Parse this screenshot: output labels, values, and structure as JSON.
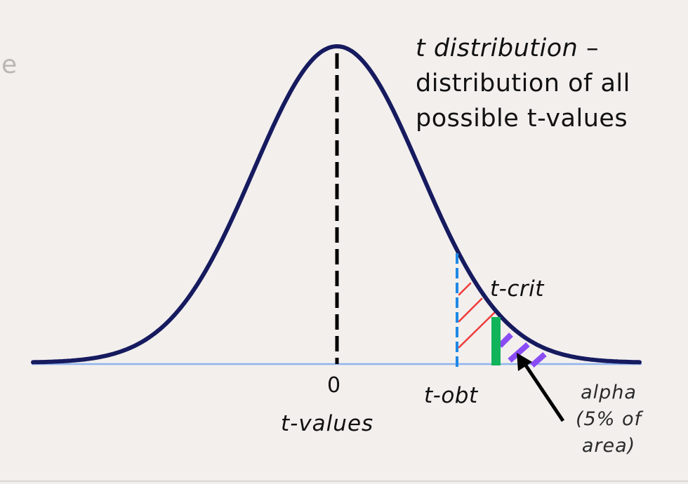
{
  "slide": {
    "edge_letter": "e"
  },
  "title": {
    "term": "t distribution",
    "dash": " –",
    "line2": "distribution of all",
    "line3": "possible t-values"
  },
  "axis": {
    "zero_label": "0",
    "label": "t-values"
  },
  "markers": {
    "t_crit": {
      "label": "t-crit",
      "color": "#11b45a"
    },
    "t_obt": {
      "label": "t-obt",
      "color": "#1e88e5"
    }
  },
  "alpha": {
    "line1": "alpha",
    "line2": "(5% of",
    "line3": "area)"
  },
  "colors": {
    "background": "#f2efed",
    "curve": "#161a5e",
    "baseline": "#8fb4ee",
    "mean_line": "#000000",
    "obt_hatch": "#ef3b3b",
    "alpha_hatch": "#8a4cf5",
    "arrow": "#000000"
  }
}
